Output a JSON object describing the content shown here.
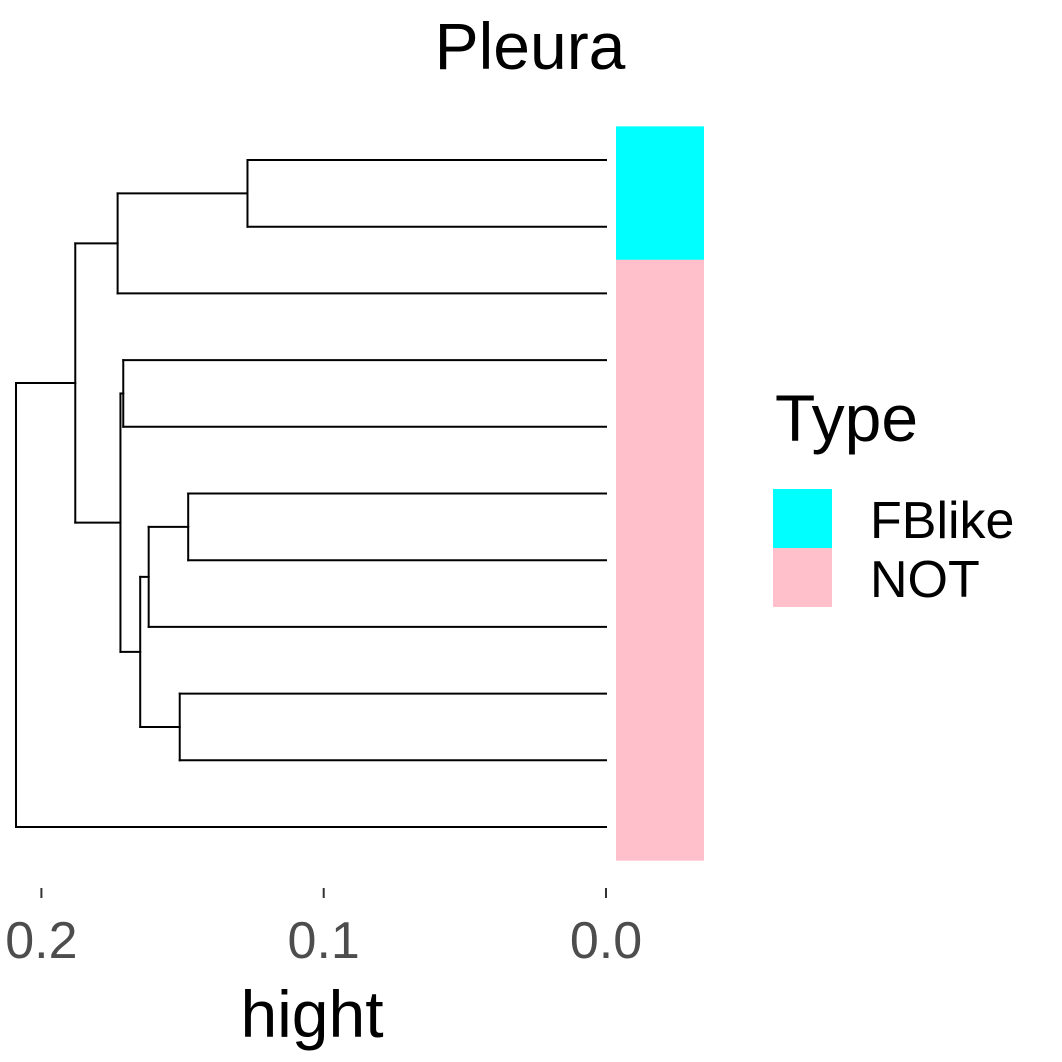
{
  "chart_data": {
    "type": "dendrogram",
    "title": "Pleura",
    "xlabel": "hight",
    "ylabel": "",
    "x_axis": {
      "reversed": true,
      "range": [
        0.213,
        0.0
      ],
      "ticks": [
        0.2,
        0.1,
        0.0
      ],
      "tick_labels": [
        "0.2",
        "0.1",
        "0.0"
      ]
    },
    "grid": false,
    "leaves": [
      "1",
      "2",
      "3",
      "4",
      "5",
      "6",
      "7",
      "8",
      "9",
      "10",
      "11"
    ],
    "merges": [
      {
        "id": "m1",
        "children": [
          "1",
          "2"
        ],
        "height": 0.127
      },
      {
        "id": "m2",
        "children": [
          "m1",
          "3"
        ],
        "height": 0.173
      },
      {
        "id": "m3",
        "children": [
          "4",
          "5"
        ],
        "height": 0.171
      },
      {
        "id": "m4",
        "children": [
          "6",
          "7"
        ],
        "height": 0.148
      },
      {
        "id": "m5",
        "children": [
          "m4",
          "8"
        ],
        "height": 0.162
      },
      {
        "id": "m6",
        "children": [
          "9",
          "10"
        ],
        "height": 0.151
      },
      {
        "id": "m7",
        "children": [
          "m5",
          "m6"
        ],
        "height": 0.165
      },
      {
        "id": "m8",
        "children": [
          "m3",
          "m7"
        ],
        "height": 0.172
      },
      {
        "id": "m9",
        "children": [
          "m2",
          "m8"
        ],
        "height": 0.188
      },
      {
        "id": "m10",
        "children": [
          "m9",
          "11"
        ],
        "height": 0.209
      }
    ],
    "annotation_bar": {
      "leaf_types": [
        "FBlike",
        "FBlike",
        "NOT",
        "NOT",
        "NOT",
        "NOT",
        "NOT",
        "NOT",
        "NOT",
        "NOT",
        "NOT"
      ]
    },
    "legend": {
      "title": "Type",
      "placement": "right",
      "items": [
        {
          "label": "FBlike",
          "color": "#00FFFF"
        },
        {
          "label": "NOT",
          "color": "#FFC0CB"
        }
      ]
    }
  }
}
